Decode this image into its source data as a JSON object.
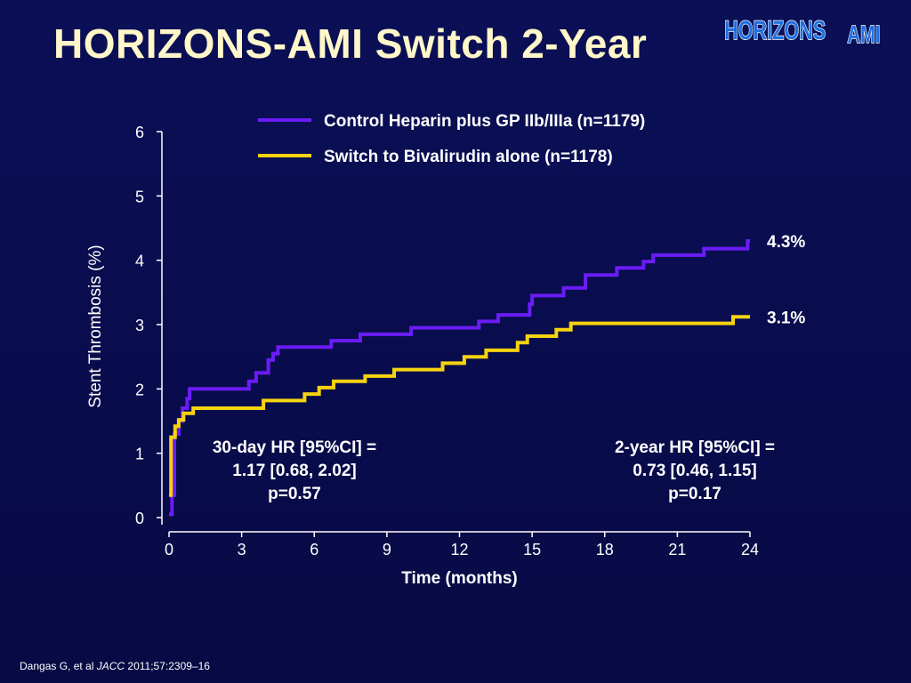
{
  "slide": {
    "title": "HORIZONS-AMI Switch 2-Year",
    "logo_text": "HORIZONS AMI",
    "citation": {
      "authors": "Dangas G, et al ",
      "journal": "JACC",
      "details": " 2011;57:2309–16"
    }
  },
  "colors": {
    "background": "#0b0f56",
    "title": "#fff7c9",
    "control_series": "#6a1cf6",
    "switch_series": "#f5d30f",
    "logo_blue": "#1e6fe0",
    "logo_outline": "#ffffff"
  },
  "chart_data": {
    "type": "line",
    "xlabel": "Time (months)",
    "ylabel": "Stent Thrombosis (%)",
    "xlim": [
      0,
      24
    ],
    "ylim": [
      0,
      6
    ],
    "xticks": [
      0,
      3,
      6,
      9,
      12,
      15,
      18,
      21,
      24
    ],
    "yticks": [
      0,
      1,
      2,
      3,
      4,
      5,
      6
    ],
    "grid": false,
    "legend_position": "top",
    "series": [
      {
        "name": "Control Heparin plus GP IIb/IIIa (n=1179)",
        "color": "#6a1cf6",
        "end_label": "4.3%",
        "points": [
          [
            0,
            0.05
          ],
          [
            0.12,
            0.05
          ],
          [
            0.12,
            0.35
          ],
          [
            0.22,
            0.35
          ],
          [
            0.22,
            1.3
          ],
          [
            0.4,
            1.3
          ],
          [
            0.4,
            1.5
          ],
          [
            0.55,
            1.5
          ],
          [
            0.55,
            1.7
          ],
          [
            0.75,
            1.7
          ],
          [
            0.75,
            1.85
          ],
          [
            0.85,
            1.85
          ],
          [
            0.85,
            2.0
          ],
          [
            3.3,
            2.0
          ],
          [
            3.3,
            2.12
          ],
          [
            3.6,
            2.12
          ],
          [
            3.6,
            2.25
          ],
          [
            4.1,
            2.25
          ],
          [
            4.1,
            2.45
          ],
          [
            4.3,
            2.45
          ],
          [
            4.3,
            2.55
          ],
          [
            4.5,
            2.55
          ],
          [
            4.5,
            2.65
          ],
          [
            6.7,
            2.65
          ],
          [
            6.7,
            2.75
          ],
          [
            7.9,
            2.75
          ],
          [
            7.9,
            2.85
          ],
          [
            10.0,
            2.85
          ],
          [
            10.0,
            2.95
          ],
          [
            12.8,
            2.95
          ],
          [
            12.8,
            3.05
          ],
          [
            13.6,
            3.05
          ],
          [
            13.6,
            3.15
          ],
          [
            14.9,
            3.15
          ],
          [
            14.9,
            3.32
          ],
          [
            15.0,
            3.32
          ],
          [
            15.0,
            3.45
          ],
          [
            16.3,
            3.45
          ],
          [
            16.3,
            3.57
          ],
          [
            17.2,
            3.57
          ],
          [
            17.2,
            3.77
          ],
          [
            18.5,
            3.77
          ],
          [
            18.5,
            3.88
          ],
          [
            19.6,
            3.88
          ],
          [
            19.6,
            3.98
          ],
          [
            20.0,
            3.98
          ],
          [
            20.0,
            4.08
          ],
          [
            22.1,
            4.08
          ],
          [
            22.1,
            4.18
          ],
          [
            23.9,
            4.18
          ],
          [
            23.9,
            4.3
          ],
          [
            24.0,
            4.3
          ]
        ]
      },
      {
        "name": "Switch to Bivalirudin alone (n=1178)",
        "color": "#f5d30f",
        "end_label": "3.1%",
        "points": [
          [
            0,
            0.35
          ],
          [
            0.08,
            0.35
          ],
          [
            0.08,
            1.25
          ],
          [
            0.25,
            1.25
          ],
          [
            0.25,
            1.42
          ],
          [
            0.4,
            1.42
          ],
          [
            0.4,
            1.52
          ],
          [
            0.6,
            1.52
          ],
          [
            0.6,
            1.62
          ],
          [
            1.0,
            1.62
          ],
          [
            1.0,
            1.7
          ],
          [
            3.9,
            1.7
          ],
          [
            3.9,
            1.82
          ],
          [
            5.6,
            1.82
          ],
          [
            5.6,
            1.92
          ],
          [
            6.2,
            1.92
          ],
          [
            6.2,
            2.02
          ],
          [
            6.8,
            2.02
          ],
          [
            6.8,
            2.12
          ],
          [
            8.1,
            2.12
          ],
          [
            8.1,
            2.2
          ],
          [
            9.3,
            2.2
          ],
          [
            9.3,
            2.3
          ],
          [
            11.3,
            2.3
          ],
          [
            11.3,
            2.4
          ],
          [
            12.2,
            2.4
          ],
          [
            12.2,
            2.5
          ],
          [
            13.1,
            2.5
          ],
          [
            13.1,
            2.6
          ],
          [
            14.4,
            2.6
          ],
          [
            14.4,
            2.72
          ],
          [
            14.8,
            2.72
          ],
          [
            14.8,
            2.82
          ],
          [
            16.0,
            2.82
          ],
          [
            16.0,
            2.92
          ],
          [
            16.6,
            2.92
          ],
          [
            16.6,
            3.02
          ],
          [
            23.3,
            3.02
          ],
          [
            23.3,
            3.12
          ],
          [
            24.0,
            3.12
          ]
        ]
      }
    ],
    "annotations": [
      {
        "lines": [
          "30-day HR [95%CI] =",
          "1.17 [0.68, 2.02]",
          "p=0.57"
        ],
        "anchor": "left"
      },
      {
        "lines": [
          "2-year HR [95%CI] =",
          "0.73 [0.46, 1.15]",
          "p=0.17"
        ],
        "anchor": "right"
      }
    ]
  }
}
